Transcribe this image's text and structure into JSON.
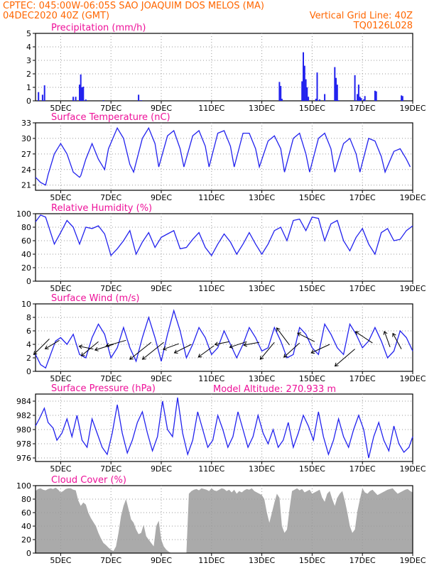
{
  "header": {
    "line1_left": "CPTEC:   045:00W-06:05S   SAO JOAQUIM DOS MELOS (MA)",
    "line2_left": "04DEC2020 40Z (GMT)",
    "line2_right": "Vertical Grid Line: 40Z",
    "line3_right": "TQ0126L028",
    "model_altitude": "Model Altitude: 270.933 m"
  },
  "colors": {
    "header": "#ff6600",
    "title": "#ee1199",
    "series": "#2222ee",
    "cloud": "#aaaaaa",
    "grid": "#999999"
  },
  "x_axis": {
    "start_day": 4.0,
    "end_day": 19.0,
    "ticks": [
      5,
      7,
      9,
      11,
      13,
      15,
      17,
      19
    ],
    "tick_labels": [
      "5DEC",
      "7DEC",
      "9DEC",
      "11DEC",
      "13DEC",
      "15DEC",
      "17DEC",
      "19DEC"
    ]
  },
  "chart_data": [
    {
      "id": "precip",
      "type": "bar",
      "title": "Precipitation (mm/h)",
      "ylim": [
        0,
        5
      ],
      "yticks": [
        0,
        1,
        2,
        3,
        4,
        5
      ],
      "x": [
        4.12,
        4.28,
        4.36,
        5.5,
        5.6,
        5.75,
        5.8,
        5.85,
        5.9,
        6.0,
        6.7,
        8.1,
        8.2,
        13.7,
        13.75,
        13.8,
        14.6,
        14.65,
        14.7,
        14.75,
        14.8,
        14.85,
        15.15,
        15.2,
        15.3,
        15.5,
        15.9,
        15.95,
        16.0,
        16.05,
        16.7,
        16.8,
        16.85,
        16.9,
        16.95,
        17.05,
        17.1,
        17.5,
        17.55,
        18.55,
        18.6
      ],
      "values": [
        0.65,
        0.45,
        1.15,
        0.3,
        0.3,
        1.2,
        1.95,
        1.0,
        1.05,
        0.1,
        0.05,
        0.45,
        0.05,
        1.4,
        1.1,
        0.15,
        1.45,
        3.6,
        2.6,
        1.6,
        1.0,
        0.3,
        0.15,
        2.1,
        0.1,
        0.5,
        2.5,
        1.7,
        1.2,
        0.05,
        1.9,
        0.5,
        1.2,
        0.3,
        0.2,
        0.1,
        0.35,
        0.75,
        0.7,
        0.4,
        0.35
      ]
    },
    {
      "id": "temp",
      "type": "line",
      "title": "Surface Temperature (nC)",
      "ylim": [
        20,
        33
      ],
      "yticks": [
        21,
        24,
        27,
        30,
        33
      ],
      "x": [
        4.0,
        4.2,
        4.4,
        4.5,
        4.75,
        5.0,
        5.25,
        5.5,
        5.75,
        5.8,
        6.0,
        6.25,
        6.5,
        6.75,
        6.9,
        7.25,
        7.5,
        7.75,
        7.9,
        8.25,
        8.5,
        8.75,
        8.9,
        9.25,
        9.5,
        9.75,
        9.9,
        10.25,
        10.5,
        10.75,
        10.9,
        11.25,
        11.5,
        11.75,
        11.9,
        12.25,
        12.5,
        12.75,
        12.9,
        13.25,
        13.5,
        13.75,
        13.9,
        14.25,
        14.5,
        14.75,
        14.9,
        15.25,
        15.5,
        15.75,
        15.9,
        16.25,
        16.5,
        16.75,
        16.9,
        17.25,
        17.5,
        17.75,
        17.9,
        18.25,
        18.5,
        18.75,
        18.9
      ],
      "values": [
        22.5,
        21.5,
        21.0,
        23.0,
        27.0,
        29.0,
        27.0,
        23.5,
        22.5,
        22.8,
        26.0,
        29.0,
        26.0,
        24.0,
        28.0,
        32.0,
        30.0,
        25.0,
        23.5,
        30.0,
        32.0,
        29.0,
        24.5,
        30.5,
        31.5,
        28.0,
        24.5,
        30.5,
        31.5,
        28.5,
        24.5,
        31.0,
        31.5,
        28.5,
        24.5,
        31.0,
        31.0,
        28.0,
        24.5,
        29.5,
        30.5,
        28.0,
        23.5,
        30.0,
        31.0,
        27.0,
        23.5,
        30.0,
        31.0,
        28.0,
        23.5,
        29.0,
        30.0,
        27.0,
        23.5,
        30.0,
        29.5,
        26.5,
        23.5,
        27.5,
        28.0,
        26.0,
        24.5
      ]
    },
    {
      "id": "rh",
      "type": "line",
      "title": "Relative Humidity (%)",
      "ylim": [
        0,
        100
      ],
      "yticks": [
        0,
        20,
        40,
        60,
        80,
        100
      ],
      "x": [
        4.0,
        4.2,
        4.4,
        4.75,
        5.0,
        5.25,
        5.5,
        5.75,
        6.0,
        6.25,
        6.5,
        6.75,
        7.0,
        7.25,
        7.5,
        7.75,
        8.0,
        8.25,
        8.5,
        8.75,
        9.0,
        9.25,
        9.5,
        9.75,
        10.0,
        10.25,
        10.5,
        10.75,
        11.0,
        11.25,
        11.5,
        11.75,
        12.0,
        12.25,
        12.5,
        12.75,
        13.0,
        13.25,
        13.5,
        13.75,
        14.0,
        14.25,
        14.5,
        14.75,
        15.0,
        15.25,
        15.5,
        15.75,
        16.0,
        16.25,
        16.5,
        16.75,
        17.0,
        17.25,
        17.5,
        17.75,
        18.0,
        18.25,
        18.5,
        18.75,
        19.0
      ],
      "values": [
        88,
        98,
        95,
        55,
        72,
        90,
        80,
        55,
        80,
        78,
        82,
        70,
        38,
        48,
        60,
        75,
        40,
        58,
        72,
        50,
        65,
        70,
        75,
        48,
        50,
        62,
        72,
        50,
        38,
        55,
        70,
        58,
        40,
        55,
        72,
        55,
        40,
        55,
        75,
        80,
        60,
        90,
        92,
        75,
        95,
        93,
        60,
        85,
        90,
        60,
        45,
        65,
        78,
        55,
        40,
        72,
        78,
        60,
        62,
        75,
        82
      ]
    },
    {
      "id": "wind",
      "type": "line",
      "title": "Surface Wind (m/s)",
      "ylim": [
        0,
        10
      ],
      "yticks": [
        0,
        2,
        4,
        6,
        8,
        10
      ],
      "x": [
        4.0,
        4.2,
        4.4,
        4.6,
        4.8,
        5.0,
        5.25,
        5.5,
        5.75,
        6.0,
        6.25,
        6.5,
        6.75,
        7.0,
        7.25,
        7.5,
        7.75,
        8.0,
        8.25,
        8.5,
        8.75,
        9.0,
        9.25,
        9.5,
        9.75,
        10.0,
        10.25,
        10.5,
        10.75,
        11.0,
        11.25,
        11.5,
        11.75,
        12.0,
        12.25,
        12.5,
        12.75,
        13.0,
        13.25,
        13.5,
        13.75,
        14.0,
        14.25,
        14.5,
        14.75,
        15.0,
        15.25,
        15.5,
        15.75,
        16.0,
        16.25,
        16.5,
        16.75,
        17.0,
        17.25,
        17.5,
        17.75,
        18.0,
        18.25,
        18.5,
        18.75,
        19.0
      ],
      "values": [
        2.5,
        1.0,
        0.5,
        2.5,
        4.5,
        5.0,
        4.0,
        5.5,
        2.5,
        2.0,
        5.0,
        7.0,
        5.5,
        2.0,
        3.5,
        6.5,
        3.5,
        1.5,
        5.0,
        8.0,
        5.0,
        1.5,
        5.5,
        9.0,
        6.0,
        2.0,
        4.0,
        6.5,
        5.0,
        2.5,
        3.5,
        6.0,
        4.0,
        2.0,
        4.0,
        6.5,
        5.0,
        3.0,
        3.5,
        6.5,
        4.5,
        2.0,
        2.5,
        6.5,
        5.5,
        3.5,
        2.5,
        7.0,
        5.5,
        3.5,
        2.5,
        7.0,
        5.5,
        3.5,
        4.5,
        6.5,
        4.5,
        2.0,
        3.0,
        6.0,
        5.0,
        3.0
      ],
      "barbs": [
        {
          "x": 4.55,
          "y": 4.8,
          "u": -0.55,
          "v": -0.55
        },
        {
          "x": 4.95,
          "y": 4.6,
          "u": -0.5,
          "v": -0.3
        },
        {
          "x": 6.3,
          "y": 3.3,
          "u": -0.5,
          "v": 0.1
        },
        {
          "x": 6.5,
          "y": 4.4,
          "u": -0.6,
          "v": -0.5
        },
        {
          "x": 7.1,
          "y": 4.0,
          "u": -0.65,
          "v": -0.2
        },
        {
          "x": 7.6,
          "y": 4.6,
          "u": -0.7,
          "v": -0.2
        },
        {
          "x": 8.6,
          "y": 4.3,
          "u": -0.75,
          "v": -0.6
        },
        {
          "x": 9.1,
          "y": 4.3,
          "u": -0.75,
          "v": -0.6
        },
        {
          "x": 9.7,
          "y": 4.1,
          "u": -0.55,
          "v": -0.2
        },
        {
          "x": 10.2,
          "y": 4.0,
          "u": -0.6,
          "v": -0.3
        },
        {
          "x": 11.1,
          "y": 3.8,
          "u": -0.55,
          "v": -0.4
        },
        {
          "x": 11.7,
          "y": 4.4,
          "u": -0.5,
          "v": -0.1
        },
        {
          "x": 12.4,
          "y": 4.4,
          "u": -0.6,
          "v": -0.2
        },
        {
          "x": 12.9,
          "y": 4.3,
          "u": -0.55,
          "v": -0.1
        },
        {
          "x": 13.5,
          "y": 4.3,
          "u": -0.5,
          "v": -0.6
        },
        {
          "x": 14.1,
          "y": 3.9,
          "u": -0.45,
          "v": 0.6
        },
        {
          "x": 14.5,
          "y": 4.2,
          "u": -0.55,
          "v": -0.5
        },
        {
          "x": 15.1,
          "y": 4.4,
          "u": -0.6,
          "v": 0.3
        },
        {
          "x": 15.7,
          "y": 4.0,
          "u": -0.65,
          "v": -0.3
        },
        {
          "x": 16.7,
          "y": 3.3,
          "u": -0.7,
          "v": -0.6
        },
        {
          "x": 17.4,
          "y": 4.2,
          "u": -0.6,
          "v": 0.4
        },
        {
          "x": 18.1,
          "y": 3.6,
          "u": -0.2,
          "v": 0.55
        },
        {
          "x": 18.55,
          "y": 3.3,
          "u": -0.3,
          "v": 0.55
        }
      ]
    },
    {
      "id": "pres",
      "type": "line",
      "title": "Surface Pressure (hPa)",
      "ylim": [
        975.5,
        985
      ],
      "yticks": [
        976,
        978,
        980,
        982,
        984
      ],
      "x": [
        4.0,
        4.15,
        4.35,
        4.5,
        4.7,
        4.85,
        5.05,
        5.25,
        5.45,
        5.65,
        5.85,
        6.05,
        6.25,
        6.45,
        6.65,
        6.85,
        7.05,
        7.25,
        7.45,
        7.65,
        7.85,
        8.05,
        8.25,
        8.45,
        8.65,
        8.85,
        9.05,
        9.25,
        9.45,
        9.65,
        9.85,
        10.05,
        10.25,
        10.45,
        10.65,
        10.85,
        11.05,
        11.25,
        11.45,
        11.65,
        11.85,
        12.05,
        12.25,
        12.45,
        12.65,
        12.85,
        13.05,
        13.25,
        13.45,
        13.65,
        13.85,
        14.05,
        14.25,
        14.45,
        14.65,
        14.85,
        15.05,
        15.25,
        15.45,
        15.65,
        15.85,
        16.05,
        16.25,
        16.45,
        16.65,
        16.85,
        17.05,
        17.25,
        17.45,
        17.65,
        17.85,
        18.05,
        18.25,
        18.45,
        18.65,
        18.85,
        19.0
      ],
      "values": [
        980.5,
        981.5,
        983.0,
        981.0,
        980.2,
        978.5,
        979.5,
        981.5,
        979.0,
        982.0,
        978.5,
        977.5,
        981.5,
        979.5,
        977.5,
        976.5,
        979.5,
        983.5,
        979.5,
        976.7,
        978.5,
        981.0,
        982.5,
        979.5,
        977.0,
        979.0,
        984.0,
        980.0,
        979.0,
        984.5,
        979.5,
        976.5,
        978.5,
        982.5,
        980.0,
        977.5,
        978.5,
        982.0,
        980.0,
        977.5,
        979.0,
        982.5,
        980.0,
        977.5,
        979.0,
        982.0,
        979.5,
        978.0,
        980.0,
        977.5,
        978.5,
        981.0,
        977.5,
        979.5,
        982.0,
        980.5,
        978.5,
        982.5,
        979.0,
        976.5,
        978.5,
        981.5,
        979.0,
        977.5,
        980.0,
        982.0,
        980.0,
        976.0,
        979.0,
        981.0,
        978.5,
        977.0,
        980.5,
        978.0,
        976.8,
        977.5,
        979.0
      ]
    },
    {
      "id": "cloud",
      "type": "area",
      "title": "Cloud Cover (%)",
      "ylim": [
        0,
        100
      ],
      "yticks": [
        0,
        20,
        40,
        60,
        80,
        100
      ],
      "x": [
        4.0,
        4.1,
        4.2,
        4.3,
        4.4,
        4.5,
        4.6,
        4.7,
        4.8,
        4.9,
        5.0,
        5.1,
        5.2,
        5.3,
        5.4,
        5.5,
        5.6,
        5.7,
        5.8,
        5.9,
        6.0,
        6.1,
        6.2,
        6.3,
        6.4,
        6.5,
        6.6,
        6.7,
        6.8,
        6.9,
        7.0,
        7.1,
        7.2,
        7.3,
        7.4,
        7.5,
        7.6,
        7.7,
        7.8,
        7.9,
        8.0,
        8.1,
        8.2,
        8.3,
        8.4,
        8.5,
        8.6,
        8.7,
        8.8,
        8.9,
        9.0,
        9.1,
        9.2,
        9.3,
        9.4,
        9.5,
        9.6,
        9.7,
        9.8,
        9.9,
        10.0,
        10.1,
        10.2,
        10.3,
        10.4,
        10.5,
        10.6,
        10.7,
        10.8,
        10.9,
        11.0,
        11.1,
        11.2,
        11.3,
        11.4,
        11.5,
        11.6,
        11.7,
        11.8,
        11.9,
        12.0,
        12.1,
        12.2,
        12.3,
        12.4,
        12.5,
        12.6,
        12.7,
        12.8,
        12.9,
        13.0,
        13.1,
        13.2,
        13.3,
        13.4,
        13.5,
        13.6,
        13.7,
        13.8,
        13.9,
        14.0,
        14.1,
        14.2,
        14.3,
        14.4,
        14.5,
        14.6,
        14.7,
        14.8,
        14.9,
        15.0,
        15.1,
        15.2,
        15.3,
        15.4,
        15.5,
        15.6,
        15.7,
        15.8,
        15.9,
        16.0,
        16.1,
        16.2,
        16.3,
        16.4,
        16.5,
        16.6,
        16.7,
        16.8,
        16.9,
        17.0,
        17.1,
        17.2,
        17.3,
        17.4,
        17.5,
        17.6,
        17.7,
        17.8,
        17.9,
        18.0,
        18.1,
        18.2,
        18.3,
        18.4,
        18.5,
        18.6,
        18.7,
        18.8,
        18.9,
        19.0
      ],
      "values": [
        92,
        95,
        96,
        94,
        93,
        95,
        96,
        95,
        97,
        94,
        90,
        92,
        95,
        96,
        96,
        94,
        93,
        78,
        70,
        75,
        72,
        60,
        52,
        46,
        40,
        30,
        22,
        15,
        12,
        8,
        5,
        3,
        10,
        30,
        55,
        70,
        80,
        65,
        50,
        45,
        35,
        28,
        30,
        42,
        25,
        20,
        15,
        10,
        40,
        48,
        20,
        10,
        5,
        2,
        0,
        0,
        0,
        0,
        0,
        0,
        0,
        88,
        92,
        94,
        95,
        93,
        96,
        95,
        94,
        92,
        96,
        93,
        92,
        94,
        96,
        95,
        92,
        94,
        90,
        94,
        88,
        92,
        90,
        93,
        95,
        94,
        96,
        92,
        90,
        88,
        86,
        80,
        60,
        45,
        60,
        75,
        88,
        82,
        40,
        30,
        35,
        65,
        92,
        94,
        96,
        93,
        95,
        90,
        92,
        94,
        88,
        90,
        92,
        94,
        82,
        76,
        88,
        92,
        80,
        70,
        82,
        88,
        92,
        78,
        60,
        40,
        30,
        35,
        62,
        80,
        96,
        90,
        88,
        92,
        94,
        90,
        86,
        88,
        90,
        92,
        94,
        95,
        96,
        92,
        88,
        90,
        92,
        94,
        95,
        92,
        90
      ]
    }
  ]
}
